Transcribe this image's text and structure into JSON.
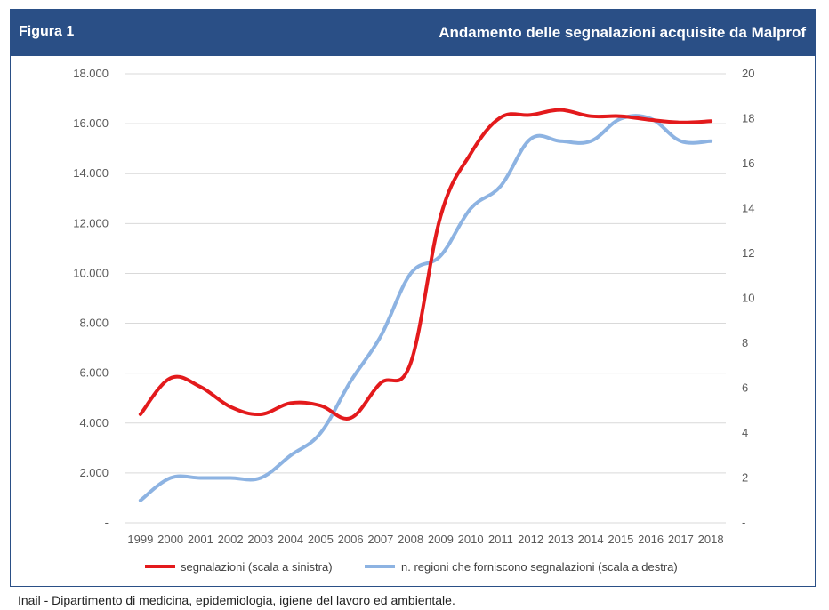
{
  "figure": {
    "label": "Figura 1",
    "title": "Andamento delle segnalazioni acquisite da Malprof"
  },
  "footer": "Inail - Dipartimento di medicina, epidemiologia, igiene del lavoro ed ambientale.",
  "chart_data": {
    "type": "line",
    "title": "",
    "x": [
      "1999",
      "2000",
      "2001",
      "2002",
      "2003",
      "2004",
      "2005",
      "2006",
      "2007",
      "2008",
      "2009",
      "2010",
      "2011",
      "2012",
      "2013",
      "2014",
      "2015",
      "2016",
      "2017",
      "2018"
    ],
    "left_axis": {
      "ylim": [
        0,
        18000
      ],
      "ticks": [
        0,
        2000,
        4000,
        6000,
        8000,
        10000,
        12000,
        14000,
        16000,
        18000
      ],
      "tick_labels": [
        "-",
        "2.000",
        "4.000",
        "6.000",
        "8.000",
        "10.000",
        "12.000",
        "14.000",
        "16.000",
        "18.000"
      ]
    },
    "right_axis": {
      "ylim": [
        0,
        20
      ],
      "ticks": [
        0,
        2,
        4,
        6,
        8,
        10,
        12,
        14,
        16,
        18,
        20
      ],
      "tick_labels": [
        "-",
        "2",
        "4",
        "6",
        "8",
        "10",
        "12",
        "14",
        "16",
        "18",
        "20"
      ]
    },
    "series": [
      {
        "name": "segnalazioni (scala a sinistra)",
        "axis": "left",
        "color": "#e31a1c",
        "values": [
          4350,
          5800,
          5450,
          4650,
          4350,
          4800,
          4700,
          4200,
          5600,
          6400,
          12300,
          14800,
          16250,
          16350,
          16550,
          16300,
          16300,
          16150,
          16050,
          16100
        ]
      },
      {
        "name": "n. regioni che forniscono segnalazioni (scala a destra)",
        "axis": "right",
        "color": "#8db3e2",
        "values": [
          1.0,
          2.0,
          2.0,
          2.0,
          2.0,
          3.0,
          4.0,
          6.3,
          8.3,
          11.1,
          11.9,
          14.0,
          15.0,
          17.1,
          17.0,
          17.0,
          18.0,
          18.0,
          17.0,
          17.0
        ]
      }
    ],
    "grid": true,
    "legend_position": "bottom"
  }
}
